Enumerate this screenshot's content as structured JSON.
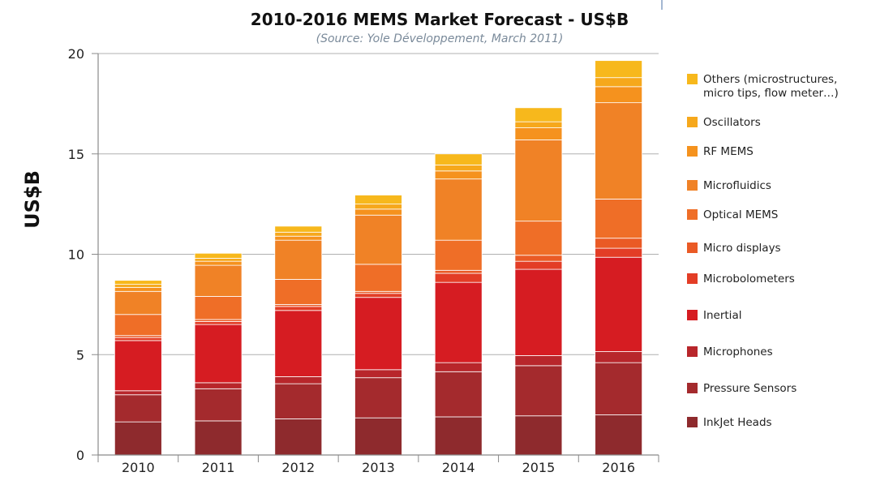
{
  "chart_data": {
    "type": "bar",
    "stacked": true,
    "title": "2010-2016 MEMS Market Forecast - US$B",
    "subtitle": "(Source: Yole Développement, March 2011)",
    "ylabel": "US$B",
    "xlabel": "",
    "ylim": [
      0,
      20
    ],
    "yticks": [
      0,
      5,
      10,
      15,
      20
    ],
    "grid": true,
    "legend_position": "right",
    "categories": [
      "2010",
      "2011",
      "2012",
      "2013",
      "2014",
      "2015",
      "2016"
    ],
    "series": [
      {
        "name": "InkJet Heads",
        "color": "#8e2a2d",
        "values": [
          1.65,
          1.7,
          1.8,
          1.85,
          1.9,
          1.95,
          2.0
        ]
      },
      {
        "name": "Pressure Sensors",
        "color": "#a42a2d",
        "values": [
          1.35,
          1.6,
          1.75,
          2.0,
          2.25,
          2.5,
          2.6
        ]
      },
      {
        "name": "Microphones",
        "color": "#b8262b",
        "values": [
          0.2,
          0.3,
          0.35,
          0.4,
          0.45,
          0.5,
          0.55
        ]
      },
      {
        "name": "Inertial",
        "color": "#d61c22",
        "values": [
          2.5,
          2.9,
          3.3,
          3.6,
          4.0,
          4.3,
          4.7
        ]
      },
      {
        "name": "Microbolometers",
        "color": "#e33d26",
        "values": [
          0.15,
          0.15,
          0.2,
          0.2,
          0.45,
          0.4,
          0.45
        ]
      },
      {
        "name": "Micro displays",
        "color": "#ea5a25",
        "values": [
          0.1,
          0.1,
          0.1,
          0.1,
          0.15,
          0.3,
          0.5
        ]
      },
      {
        "name": "Optical MEMS",
        "color": "#ef6e27",
        "values": [
          1.05,
          1.15,
          1.25,
          1.35,
          1.5,
          1.7,
          1.95
        ]
      },
      {
        "name": "Microfluidics",
        "color": "#f08226",
        "values": [
          1.15,
          1.55,
          1.95,
          2.45,
          3.05,
          4.05,
          4.8
        ]
      },
      {
        "name": "RF MEMS",
        "color": "#f5921e",
        "values": [
          0.2,
          0.2,
          0.2,
          0.3,
          0.4,
          0.6,
          0.8
        ]
      },
      {
        "name": "Oscillators",
        "color": "#f6a81c",
        "values": [
          0.15,
          0.15,
          0.2,
          0.25,
          0.3,
          0.3,
          0.45
        ]
      },
      {
        "name": "Others (microstructures, micro tips, flow meter…)",
        "color": "#f7b81c",
        "values": [
          0.2,
          0.25,
          0.3,
          0.45,
          0.55,
          0.7,
          0.85
        ]
      }
    ],
    "legend": [
      {
        "lines": [
          "Others (microstructures,",
          "micro tips, flow meter…)"
        ],
        "color": "#f7b81c"
      },
      {
        "lines": [
          "Oscillators"
        ],
        "color": "#f6a81c"
      },
      {
        "lines": [
          "RF MEMS"
        ],
        "color": "#f5921e"
      },
      {
        "lines": [
          "Microfluidics"
        ],
        "color": "#f08226"
      },
      {
        "lines": [
          "Optical MEMS"
        ],
        "color": "#ef6e27"
      },
      {
        "lines": [
          "Micro displays"
        ],
        "color": "#ea5a25"
      },
      {
        "lines": [
          "Microbolometers"
        ],
        "color": "#e33d26"
      },
      {
        "lines": [
          "Inertial"
        ],
        "color": "#d61c22"
      },
      {
        "lines": [
          "Microphones"
        ],
        "color": "#b8262b"
      },
      {
        "lines": [
          "Pressure Sensors"
        ],
        "color": "#a42a2d"
      },
      {
        "lines": [
          "InkJet Heads"
        ],
        "color": "#8e2a2d"
      }
    ],
    "colors": {
      "grid": "#b0b0b0",
      "axis": "#8a8a8a",
      "separator": "#ffffff"
    }
  }
}
